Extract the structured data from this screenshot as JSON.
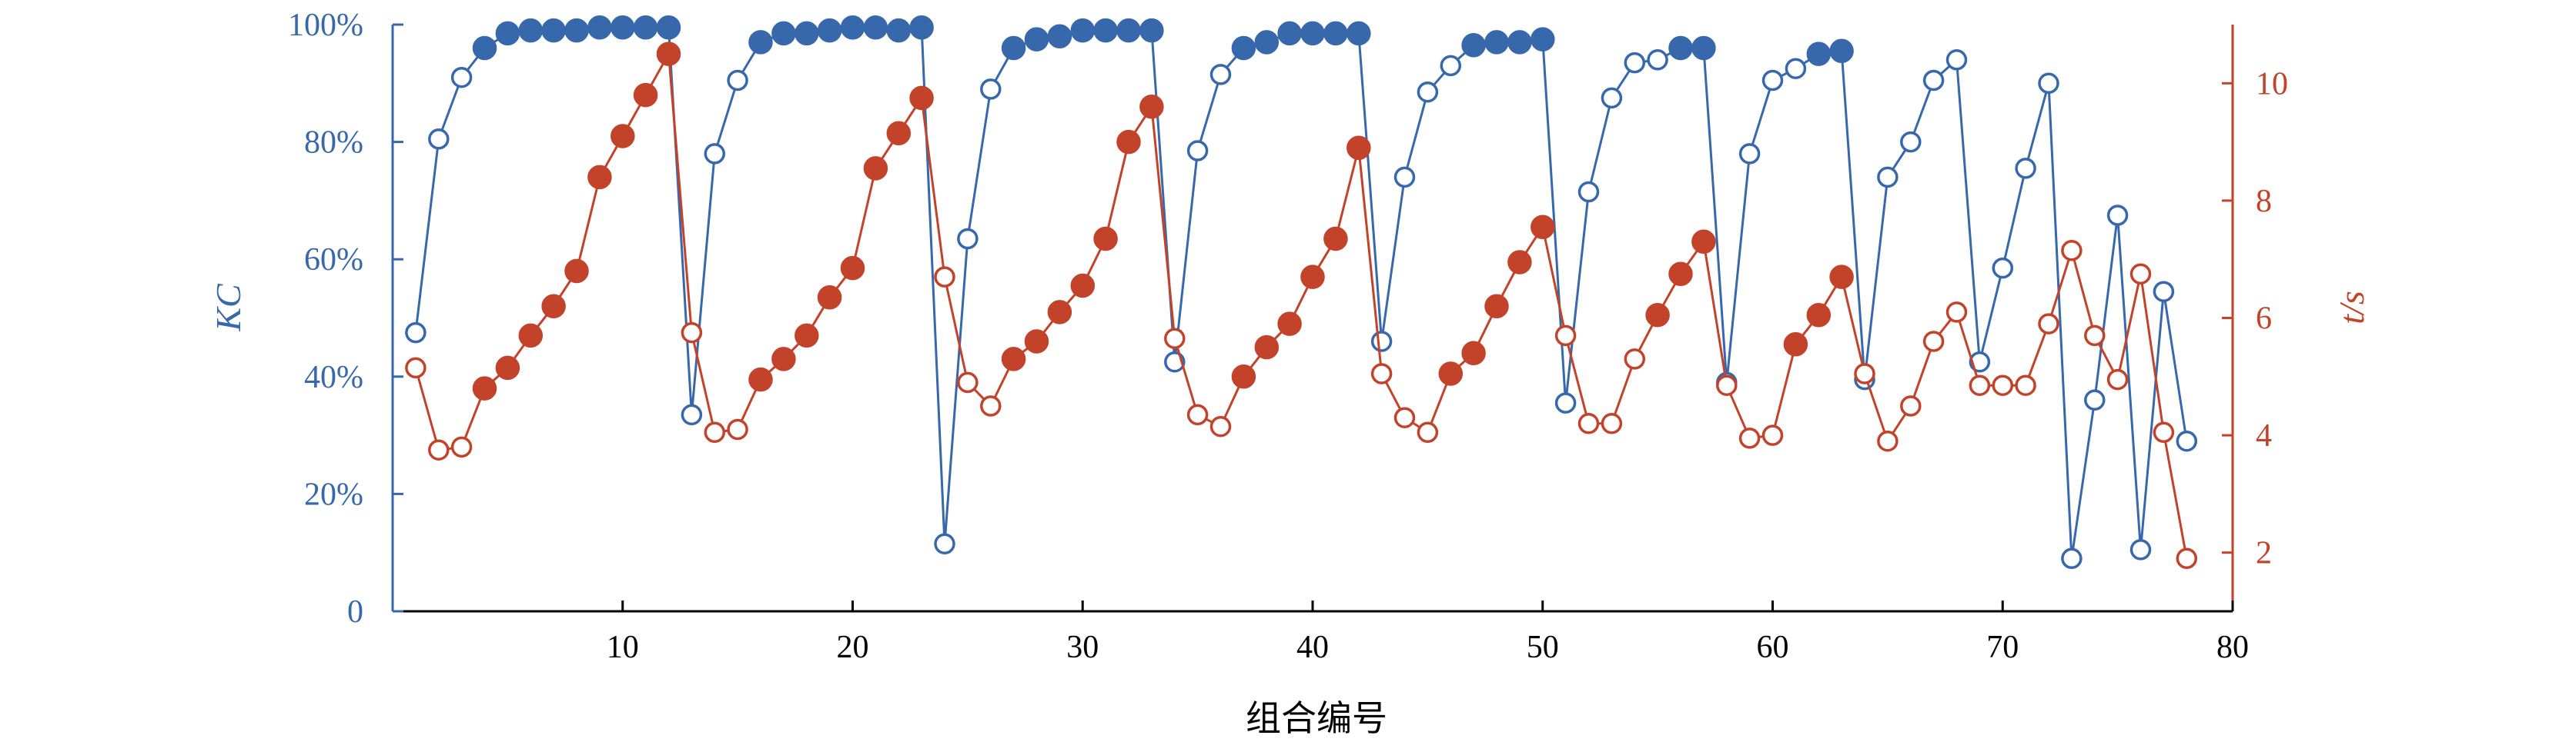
{
  "colors": {
    "kc": "#3768ac",
    "time": "#c2432a",
    "axis_x": "#000000"
  },
  "chart_data": {
    "type": "line",
    "xlabel": "组合编号",
    "ylabel_left": "KC",
    "ylabel_right": "t/s",
    "xlim": [
      0,
      80
    ],
    "ylim_left": [
      0,
      1
    ],
    "ylim_right": [
      1,
      11
    ],
    "x_ticks": [
      10,
      20,
      30,
      40,
      50,
      60,
      70,
      80
    ],
    "y_left_ticks": [
      0,
      0.2,
      0.4,
      0.6,
      0.8,
      1.0
    ],
    "y_left_tick_labels": [
      "0",
      "20%",
      "40%",
      "60%",
      "80%",
      "100%"
    ],
    "y_right_ticks": [
      2,
      4,
      6,
      8,
      10
    ],
    "y_right_tick_labels": [
      "2",
      "4",
      "6",
      "8",
      "10"
    ],
    "grid": false,
    "x": [
      1,
      2,
      3,
      4,
      5,
      6,
      7,
      8,
      9,
      10,
      11,
      12,
      13,
      14,
      15,
      16,
      17,
      18,
      19,
      20,
      21,
      22,
      23,
      24,
      25,
      26,
      27,
      28,
      29,
      30,
      31,
      32,
      33,
      34,
      35,
      36,
      37,
      38,
      39,
      40,
      41,
      42,
      43,
      44,
      45,
      46,
      47,
      48,
      49,
      50,
      51,
      52,
      53,
      54,
      55,
      56,
      57,
      58,
      59,
      60,
      61,
      62,
      63,
      64,
      65,
      66,
      67,
      68,
      69,
      70,
      71,
      72,
      73,
      74,
      75,
      76,
      77,
      78
    ],
    "series": [
      {
        "axis": "left",
        "values": [
          0.475,
          0.805,
          0.91,
          0.96,
          0.985,
          0.99,
          0.99,
          0.99,
          0.995,
          0.995,
          0.995,
          0.995,
          0.335,
          0.78,
          0.905,
          0.97,
          0.985,
          0.985,
          0.99,
          0.995,
          0.995,
          0.99,
          0.995,
          0.115,
          0.635,
          0.89,
          0.96,
          0.975,
          0.98,
          0.99,
          0.99,
          0.99,
          0.99,
          0.425,
          0.785,
          0.915,
          0.96,
          0.97,
          0.985,
          0.985,
          0.985,
          0.985,
          0.46,
          0.74,
          0.885,
          0.93,
          0.965,
          0.97,
          0.97,
          0.975,
          0.355,
          0.715,
          0.875,
          0.935,
          0.94,
          0.96,
          0.96,
          0.39,
          0.78,
          0.905,
          0.925,
          0.95,
          0.955,
          0.395,
          0.74,
          0.8,
          0.905,
          0.94,
          0.425,
          0.585,
          0.755,
          0.9,
          0.09,
          0.36,
          0.675,
          0.105,
          0.545,
          0.29
        ],
        "filled": [
          false,
          false,
          false,
          true,
          true,
          true,
          true,
          true,
          true,
          true,
          true,
          true,
          false,
          false,
          false,
          true,
          true,
          true,
          true,
          true,
          true,
          true,
          true,
          false,
          false,
          false,
          true,
          true,
          true,
          true,
          true,
          true,
          true,
          false,
          false,
          false,
          true,
          true,
          true,
          true,
          true,
          true,
          false,
          false,
          false,
          false,
          true,
          true,
          true,
          true,
          false,
          false,
          false,
          false,
          false,
          true,
          true,
          false,
          false,
          false,
          false,
          true,
          true,
          false,
          false,
          false,
          false,
          false,
          false,
          false,
          false,
          false,
          false,
          false,
          false,
          false,
          false,
          false
        ]
      },
      {
        "axis": "right",
        "values": [
          5.15,
          3.75,
          3.8,
          4.8,
          5.15,
          5.7,
          6.2,
          6.8,
          8.4,
          9.1,
          9.8,
          10.5,
          5.75,
          4.05,
          4.1,
          4.95,
          5.3,
          5.7,
          6.35,
          6.85,
          8.55,
          9.15,
          9.75,
          6.7,
          4.9,
          4.5,
          5.3,
          5.6,
          6.1,
          6.55,
          7.35,
          9.0,
          9.6,
          5.65,
          4.35,
          4.15,
          5.0,
          5.5,
          5.9,
          6.7,
          7.35,
          8.9,
          5.05,
          4.3,
          4.05,
          5.05,
          5.4,
          6.2,
          6.95,
          7.55,
          5.7,
          4.2,
          4.2,
          5.3,
          6.05,
          6.75,
          7.3,
          4.85,
          3.95,
          4.0,
          5.55,
          6.05,
          6.7,
          5.05,
          3.9,
          4.5,
          5.6,
          6.1,
          4.85,
          4.85,
          4.85,
          5.9,
          7.15,
          5.7,
          4.95,
          6.75,
          4.05,
          1.9
        ],
        "filled": [
          false,
          false,
          false,
          true,
          true,
          true,
          true,
          true,
          true,
          true,
          true,
          true,
          false,
          false,
          false,
          true,
          true,
          true,
          true,
          true,
          true,
          true,
          true,
          false,
          false,
          false,
          true,
          true,
          true,
          true,
          true,
          true,
          true,
          false,
          false,
          false,
          true,
          true,
          true,
          true,
          true,
          true,
          false,
          false,
          false,
          true,
          true,
          true,
          true,
          true,
          false,
          false,
          false,
          false,
          true,
          true,
          true,
          false,
          false,
          false,
          true,
          true,
          true,
          false,
          false,
          false,
          false,
          false,
          false,
          false,
          false,
          false,
          false,
          false,
          false,
          false,
          false,
          false
        ]
      }
    ]
  }
}
